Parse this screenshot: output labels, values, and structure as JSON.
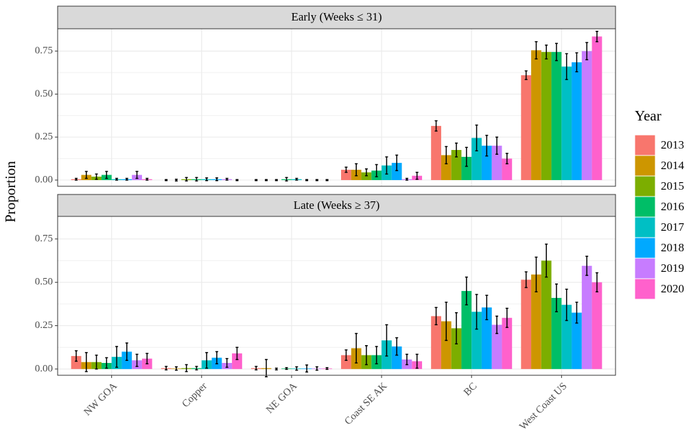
{
  "chart_data": {
    "type": "bar",
    "ylabel": "Proportion",
    "categories": [
      "NW GOA",
      "Copper",
      "NE GOA",
      "Coast SE AK",
      "BC",
      "West Coast US"
    ],
    "legend": {
      "title": "Year",
      "names": [
        "2013",
        "2014",
        "2015",
        "2016",
        "2017",
        "2018",
        "2019",
        "2020"
      ],
      "colors": [
        "#F8766D",
        "#CD9600",
        "#7CAE00",
        "#00BE67",
        "#00BFC4",
        "#00A9FF",
        "#C77CFF",
        "#FF61CC"
      ]
    },
    "ylim": [
      -0.036,
      0.88
    ],
    "yticks": [
      {
        "value": 0,
        "label": "0.00"
      },
      {
        "value": 0.25,
        "label": "0.25"
      },
      {
        "value": 0.5,
        "label": "0.50"
      },
      {
        "value": 0.75,
        "label": "0.75"
      }
    ],
    "grid": true,
    "panels": [
      {
        "title": "Early (Weeks ≤ 31)",
        "series": [
          {
            "values": [
              0.005,
              0,
              0,
              0.06,
              0.315,
              0.61
            ],
            "errors": [
              0.005,
              0.003,
              0.003,
              0.015,
              0.03,
              0.025
            ]
          },
          {
            "values": [
              0.03,
              0,
              0,
              0.06,
              0.145,
              0.755
            ],
            "errors": [
              0.02,
              0.005,
              0.003,
              0.035,
              0.05,
              0.05
            ]
          },
          {
            "values": [
              0.02,
              0.005,
              0,
              0.045,
              0.175,
              0.745
            ],
            "errors": [
              0.015,
              0.01,
              0.003,
              0.02,
              0.04,
              0.04
            ]
          },
          {
            "values": [
              0.03,
              0.005,
              0.005,
              0.055,
              0.135,
              0.745
            ],
            "errors": [
              0.02,
              0.01,
              0.01,
              0.035,
              0.055,
              0.05
            ]
          },
          {
            "values": [
              0.005,
              0.005,
              0.005,
              0.085,
              0.245,
              0.66
            ],
            "errors": [
              0.005,
              0.008,
              0.005,
              0.05,
              0.075,
              0.075
            ]
          },
          {
            "values": [
              0.005,
              0.005,
              0,
              0.1,
              0.2,
              0.685
            ],
            "errors": [
              0.005,
              0.008,
              0.003,
              0.045,
              0.06,
              0.055
            ]
          },
          {
            "values": [
              0.03,
              0.005,
              0,
              0.005,
              0.2,
              0.75
            ],
            "errors": [
              0.02,
              0.005,
              0.003,
              0.005,
              0.05,
              0.05
            ]
          },
          {
            "values": [
              0.005,
              0,
              0,
              0.025,
              0.125,
              0.835
            ],
            "errors": [
              0.005,
              0.003,
              0.003,
              0.02,
              0.03,
              0.03
            ]
          }
        ]
      },
      {
        "title": "Late (Weeks ≥ 37)",
        "series": [
          {
            "values": [
              0.075,
              0.005,
              0.005,
              0.08,
              0.305,
              0.515
            ],
            "errors": [
              0.03,
              0.01,
              0.01,
              0.03,
              0.05,
              0.045
            ]
          },
          {
            "values": [
              0.04,
              0.003,
              0.005,
              0.12,
              0.275,
              0.545
            ],
            "errors": [
              0.055,
              0.01,
              0.05,
              0.085,
              0.11,
              0.1
            ]
          },
          {
            "values": [
              0.04,
              0.005,
              0,
              0.08,
              0.235,
              0.625
            ],
            "errors": [
              0.04,
              0.02,
              0.005,
              0.055,
              0.09,
              0.095
            ]
          },
          {
            "values": [
              0.035,
              0.005,
              0.003,
              0.08,
              0.45,
              0.41
            ],
            "errors": [
              0.03,
              0.01,
              0.005,
              0.05,
              0.08,
              0.08
            ]
          },
          {
            "values": [
              0.07,
              0.05,
              0.003,
              0.165,
              0.33,
              0.37
            ],
            "errors": [
              0.06,
              0.045,
              0.01,
              0.09,
              0.1,
              0.09
            ]
          },
          {
            "values": [
              0.1,
              0.065,
              0.003,
              0.13,
              0.355,
              0.325
            ],
            "errors": [
              0.05,
              0.035,
              0.02,
              0.05,
              0.07,
              0.06
            ]
          },
          {
            "values": [
              0.05,
              0.035,
              0.003,
              0.055,
              0.255,
              0.595
            ],
            "errors": [
              0.035,
              0.025,
              0.01,
              0.03,
              0.05,
              0.055
            ]
          },
          {
            "values": [
              0.06,
              0.09,
              0.003,
              0.045,
              0.295,
              0.5
            ],
            "errors": [
              0.03,
              0.035,
              0.005,
              0.04,
              0.055,
              0.055
            ]
          }
        ]
      }
    ]
  }
}
